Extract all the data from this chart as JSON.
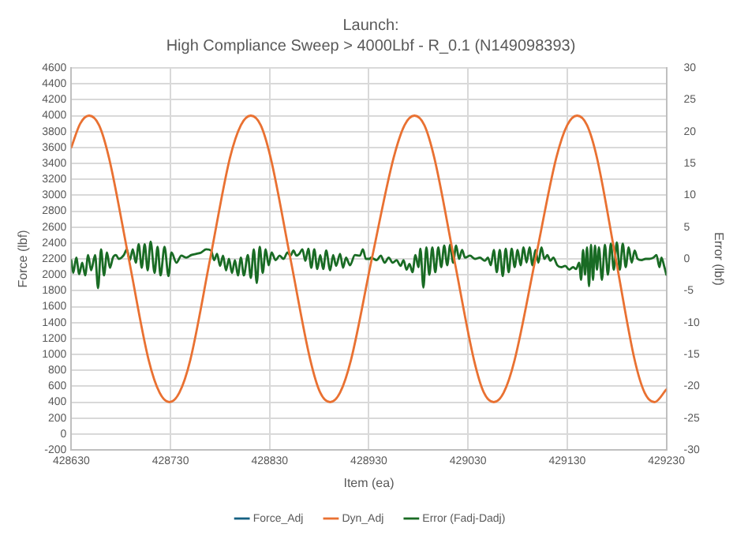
{
  "chart_data": {
    "type": "line",
    "title": "Launch:",
    "subtitle": "High Compliance Sweep > 4000Lbf - R_0.1 (N149098393)",
    "xlabel": "Item (ea)",
    "ylabel": "Force (lbf)",
    "y2label": "Error (lbf)",
    "xlim": [
      428630,
      429230
    ],
    "xticks": [
      428630,
      428730,
      428830,
      428930,
      429030,
      429130,
      429230
    ],
    "ylim": [
      -200,
      4600
    ],
    "yticks": [
      -200,
      0,
      200,
      400,
      600,
      800,
      1000,
      1200,
      1400,
      1600,
      1800,
      2000,
      2200,
      2400,
      2600,
      2800,
      3000,
      3200,
      3400,
      3600,
      3800,
      4000,
      4200,
      4400,
      4600
    ],
    "y2lim": [
      -30,
      30
    ],
    "y2ticks": [
      -30,
      -25,
      -20,
      -15,
      -10,
      -5,
      0,
      5,
      10,
      15,
      20,
      25,
      30
    ],
    "grid": true,
    "legend": "bottom",
    "marker": "none",
    "line_style": "solid",
    "series": [
      {
        "name": "Force_Adj",
        "color": "#156082"
      },
      {
        "name": "Dyn_Adj",
        "color": "#e97132",
        "x": [
          428630,
          428639,
          428648,
          428658,
          428668,
          428688,
          428708,
          428719,
          428729,
          428739,
          428750,
          428770,
          428790,
          428801,
          428811,
          428821,
          428831,
          428851,
          428871,
          428881,
          428891,
          428901,
          428912,
          428933,
          428955,
          428966,
          428976,
          428986,
          428996,
          429016,
          429036,
          429046,
          429056,
          429066,
          429077,
          429098,
          429119,
          429130,
          429140,
          429150,
          429160,
          429179,
          429198,
          429208,
          429218,
          429230
        ],
        "values": [
          3600,
          3900,
          4000,
          3880,
          3470,
          2200,
          930,
          520,
          400,
          520,
          930,
          2200,
          3470,
          3880,
          4000,
          3880,
          3470,
          2200,
          930,
          520,
          400,
          520,
          930,
          2200,
          3470,
          3880,
          4000,
          3880,
          3470,
          2200,
          930,
          520,
          400,
          520,
          930,
          2200,
          3470,
          3880,
          4000,
          3880,
          3470,
          2200,
          930,
          520,
          400,
          560
        ]
      },
      {
        "name": "Error (Fadj-Dadj)",
        "color": "#196b24",
        "axis": "y2",
        "x": [
          428630,
          428632,
          428635,
          428638,
          428641,
          428644,
          428647,
          428650,
          428654,
          428657,
          428660,
          428663,
          428666,
          428669,
          428672,
          428675,
          428678,
          428683,
          428686,
          428689,
          428692,
          428695,
          428698,
          428701,
          428704,
          428707,
          428710,
          428714,
          428717,
          428720,
          428724,
          428728,
          428731,
          428736,
          428741,
          428746,
          428751,
          428756,
          428761,
          428766,
          428771,
          428774,
          428777,
          428780,
          428783,
          428786,
          428789,
          428792,
          428795,
          428798,
          428801,
          428804,
          428808,
          428811,
          428814,
          428817,
          428820,
          428823,
          428826,
          428829,
          428832,
          428836,
          428840,
          428844,
          428848,
          428851,
          428854,
          428857,
          428860,
          428863,
          428866,
          428869,
          428872,
          428875,
          428878,
          428881,
          428884,
          428887,
          428891,
          428894,
          428897,
          428901,
          428904,
          428907,
          428911,
          428916,
          428921,
          428924,
          428927,
          428931,
          428932,
          428938,
          428942,
          428946,
          428950,
          428954,
          428958,
          428962,
          428965,
          428968,
          428971,
          428974,
          428977,
          428980,
          428982,
          428985,
          428988,
          428991,
          428994,
          428997,
          429000,
          429003,
          429006,
          429009,
          429012,
          429015,
          429018,
          429021,
          429024,
          429027,
          429032,
          429037,
          429042,
          429047,
          429050,
          429053,
          429056,
          429059,
          429062,
          429065,
          429068,
          429071,
          429074,
          429077,
          429080,
          429083,
          429086,
          429089,
          429092,
          429095,
          429098,
          429101,
          429104,
          429107,
          429110,
          429113,
          429116,
          429120,
          429124,
          429128,
          429132,
          429136,
          429139,
          429142,
          429144,
          429146,
          429148,
          429150,
          429152,
          429154,
          429156,
          429158,
          429160,
          429162,
          429165,
          429168,
          429171,
          429174,
          429177,
          429180,
          429183,
          429186,
          429189,
          429192,
          429195,
          429198,
          429201,
          429205,
          429209,
          429213,
          429217,
          429220,
          429223,
          429225,
          429228,
          429230
        ],
        "values": [
          -0.2,
          -2.2,
          0.2,
          -2.4,
          -0.6,
          -2.6,
          0.6,
          -1.8,
          0.6,
          -4.6,
          1.5,
          -2.6,
          1.0,
          -1.4,
          0.2,
          0.6,
          0.0,
          0.6,
          1.5,
          -0.2,
          1.5,
          -0.6,
          2.3,
          -1.4,
          2.3,
          -1.8,
          2.7,
          -2.2,
          1.9,
          -2.6,
          1.9,
          -2.7,
          1.0,
          -0.6,
          0.5,
          0.2,
          0.6,
          0.8,
          1.0,
          1.5,
          1.3,
          -0.2,
          0.8,
          -1.1,
          0.5,
          -1.8,
          0.0,
          -2.2,
          -0.2,
          -2.6,
          0.2,
          -2.6,
          0.6,
          -3.0,
          1.5,
          -3.8,
          1.9,
          -2.2,
          1.5,
          -1.0,
          1.0,
          -0.2,
          0.5,
          0.0,
          1.0,
          0.5,
          1.3,
          0.5,
          0.8,
          1.5,
          -0.3,
          1.6,
          -1.4,
          1.5,
          -1.6,
          0.6,
          -1.6,
          1.3,
          -1.8,
          0.6,
          -1.1,
          0.8,
          -1.4,
          0.2,
          -1.0,
          0.6,
          0.5,
          1.5,
          0.0,
          0.0,
          0.2,
          -0.2,
          0.5,
          -0.6,
          0.2,
          -0.6,
          -0.2,
          -1.1,
          -0.2,
          -1.7,
          -0.8,
          -2.1,
          0.6,
          -1.3,
          1.6,
          -4.5,
          1.8,
          -2.5,
          1.8,
          -2.1,
          1.8,
          -1.3,
          2.1,
          -1.0,
          2.2,
          -0.6,
          2.1,
          0.0,
          1.4,
          0.2,
          0.5,
          0.0,
          0.2,
          -0.3,
          0.2,
          -1.0,
          1.4,
          -2.1,
          1.4,
          -2.7,
          1.6,
          -2.1,
          1.6,
          -1.3,
          1.4,
          -1.0,
          1.8,
          -0.6,
          1.8,
          -1.0,
          1.4,
          -0.6,
          1.8,
          0.0,
          0.6,
          -0.3,
          0.2,
          -1.0,
          -1.3,
          -1.1,
          -1.7,
          -1.3,
          -1.6,
          -0.6,
          -3.3,
          1.4,
          -2.5,
          1.8,
          -4.3,
          2.2,
          -3.3,
          2.1,
          -1.7,
          1.8,
          -3.3,
          2.2,
          -2.5,
          2.4,
          -1.7,
          2.6,
          -1.7,
          2.4,
          -1.3,
          1.8,
          -0.6,
          1.3,
          0.0,
          -0.2,
          0.0,
          0.0,
          0.2,
          0.6,
          -1.3,
          0.2,
          -1.3,
          -2.5
        ]
      }
    ]
  }
}
